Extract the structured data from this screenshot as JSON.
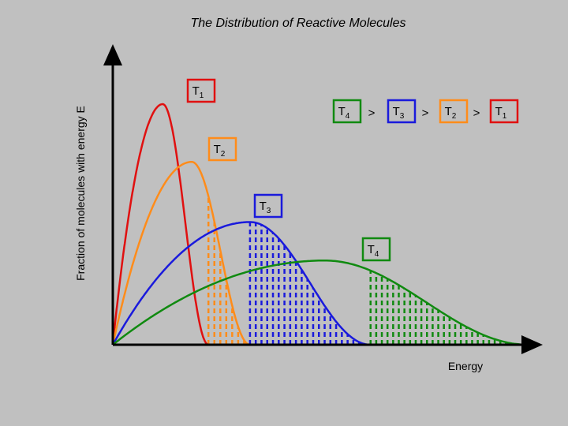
{
  "chart_data": {
    "type": "line",
    "title": "The Distribution of Reactive Molecules",
    "xlabel": "Energy",
    "ylabel": "Fraction of molecules with energy E",
    "xlim": [
      0,
      100
    ],
    "ylim": [
      0,
      100
    ],
    "series": [
      {
        "name": "T1",
        "color": "#e01010",
        "peak_x": 12,
        "peak_y": 100,
        "end_x": 23,
        "threshold_x": 23
      },
      {
        "name": "T2",
        "color": "#ff8c1a",
        "peak_x": 19,
        "peak_y": 76,
        "end_x": 33,
        "threshold_x": 23
      },
      {
        "name": "T3",
        "color": "#1a1adc",
        "peak_x": 33,
        "peak_y": 51,
        "end_x": 62,
        "threshold_x": 33
      },
      {
        "name": "T4",
        "color": "#108a10",
        "peak_x": 51,
        "peak_y": 35,
        "end_x": 100,
        "threshold_x": 62
      }
    ],
    "legend": {
      "text": "T4 > T3 > T2 > T1",
      "items": [
        {
          "base": "T",
          "sub": "4",
          "color": "#108a10"
        },
        {
          "base": "T",
          "sub": "3",
          "color": "#1a1adc"
        },
        {
          "base": "T",
          "sub": "2",
          "color": "#ff8c1a"
        },
        {
          "base": "T",
          "sub": "1",
          "color": "#e01010"
        }
      ],
      "separator": ">"
    },
    "labels": [
      {
        "base": "T",
        "sub": "1",
        "color": "#e01010"
      },
      {
        "base": "T",
        "sub": "2",
        "color": "#ff8c1a"
      },
      {
        "base": "T",
        "sub": "3",
        "color": "#1a1adc"
      },
      {
        "base": "T",
        "sub": "4",
        "color": "#108a10"
      }
    ]
  }
}
